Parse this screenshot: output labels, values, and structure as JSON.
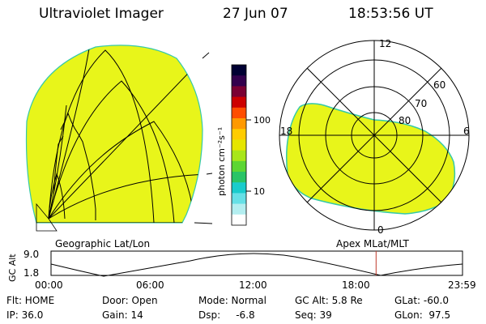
{
  "header": {
    "instrument": "Ultraviolet Imager",
    "date": "27 Jun 07",
    "time": "18:53:56 UT"
  },
  "colors": {
    "background": "#ffffff",
    "foreground": "#000000",
    "emission_fill": "#e8f51a",
    "emission_edge": "#35c9a8",
    "time_marker": "#c0392b"
  },
  "colorbar": {
    "unit_label": "photon cm⁻²s⁻¹",
    "ticks": [
      "100",
      "10"
    ],
    "stops": [
      "#000033",
      "#33004d",
      "#7a0033",
      "#cc0000",
      "#ff4d00",
      "#ff9900",
      "#ffcc00",
      "#e6e600",
      "#a8e619",
      "#5cd633",
      "#29c466",
      "#19cccc",
      "#66e0e6",
      "#b3eef0",
      "#ffffff"
    ]
  },
  "left_panel": {
    "label": "Geographic Lat/Lon"
  },
  "right_panel": {
    "label": "Apex MLat/MLT",
    "mlt_labels": [
      "12",
      "18",
      "6",
      "0"
    ],
    "mlat_labels": [
      "60",
      "70",
      "80"
    ]
  },
  "timeline": {
    "axis_label": "GC Alt",
    "y_ticks": [
      "9.0",
      "1.8"
    ],
    "x_ticks": [
      "00:00",
      "06:00",
      "12:00",
      "18:00",
      "23:59"
    ],
    "current_time_fraction": 0.79
  },
  "footer": {
    "row1": [
      "Flt: HOME",
      "Door: Open",
      "Mode: Normal",
      "GC Alt: 5.8 Re",
      "GLat: -60.0"
    ],
    "row2": [
      "IP: 36.0",
      "Gain: 14",
      "Dsp:     -6.8",
      "Seq: 39",
      "GLon:  97.5"
    ]
  }
}
